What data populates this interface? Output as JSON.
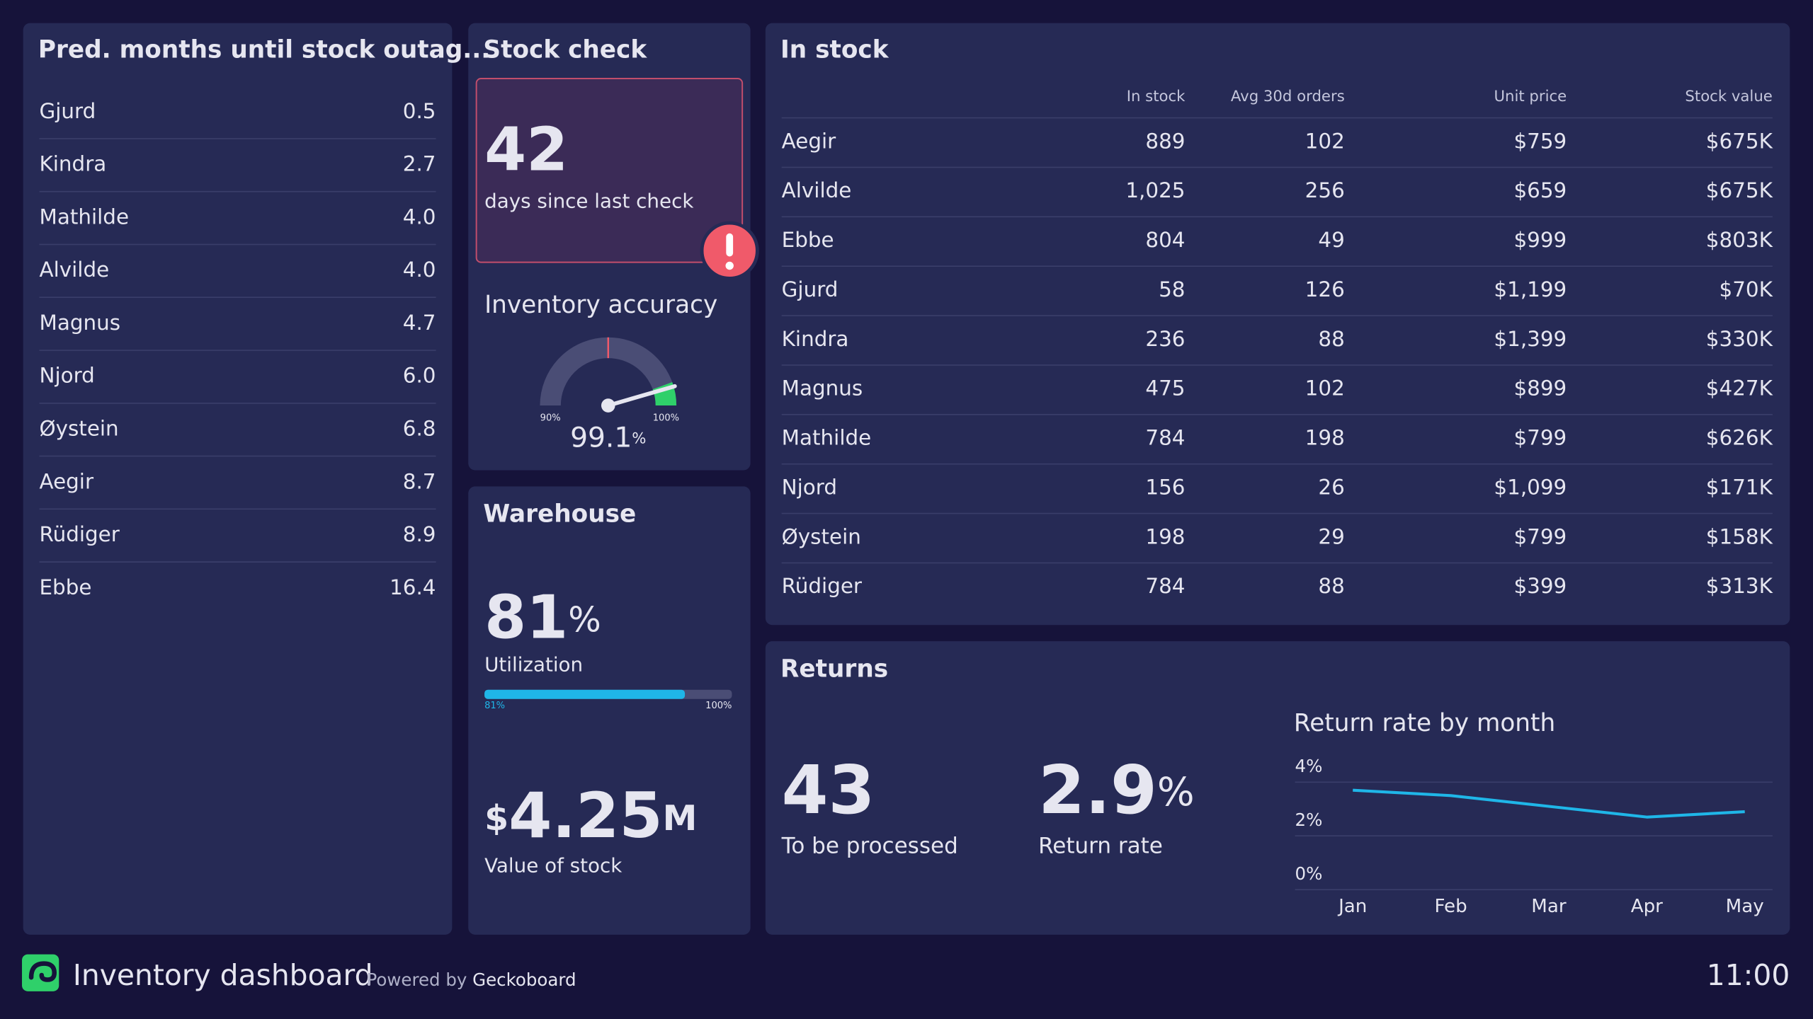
{
  "outage": {
    "title": "Pred. months until stock outag...",
    "rows": [
      [
        "Gjurd",
        "0.5"
      ],
      [
        "Kindra",
        "2.7"
      ],
      [
        "Mathilde",
        "4.0"
      ],
      [
        "Alvilde",
        "4.0"
      ],
      [
        "Magnus",
        "4.7"
      ],
      [
        "Njord",
        "6.0"
      ],
      [
        "Øystein",
        "6.8"
      ],
      [
        "Aegir",
        "8.7"
      ],
      [
        "Rüdiger",
        "8.9"
      ],
      [
        "Ebbe",
        "16.4"
      ]
    ]
  },
  "stock_check": {
    "title": "Stock check",
    "days": "42",
    "caption": "days since last check"
  },
  "accuracy": {
    "title": "Inventory accuracy",
    "value": 99.1,
    "unit": "%",
    "min": {
      "value": 90,
      "label": "90%"
    },
    "max": {
      "value": 100,
      "label": "100%"
    }
  },
  "warehouse": {
    "title": "Warehouse",
    "utilization": {
      "value": 81,
      "unit": "%",
      "label": "Utilization",
      "value_label": "81%",
      "max": {
        "value": 100,
        "label": "100%"
      }
    },
    "stock_value": {
      "prefix": "$",
      "value": "4.25",
      "suffix": "M",
      "label": "Value of stock"
    }
  },
  "in_stock": {
    "title": "In stock",
    "columns": [
      "In stock",
      "Avg 30d orders",
      "Unit price",
      "Stock value"
    ],
    "rows": [
      [
        "Aegir",
        "889",
        "102",
        "$759",
        "$675K"
      ],
      [
        "Alvilde",
        "1,025",
        "256",
        "$659",
        "$675K"
      ],
      [
        "Ebbe",
        "804",
        "49",
        "$999",
        "$803K"
      ],
      [
        "Gjurd",
        "58",
        "126",
        "$1,199",
        "$70K"
      ],
      [
        "Kindra",
        "236",
        "88",
        "$1,399",
        "$330K"
      ],
      [
        "Magnus",
        "475",
        "102",
        "$899",
        "$427K"
      ],
      [
        "Mathilde",
        "784",
        "198",
        "$799",
        "$626K"
      ],
      [
        "Njord",
        "156",
        "26",
        "$1,099",
        "$171K"
      ],
      [
        "Øystein",
        "198",
        "29",
        "$799",
        "$158K"
      ],
      [
        "Rüdiger",
        "784",
        "88",
        "$399",
        "$313K"
      ]
    ]
  },
  "returns": {
    "title": "Returns",
    "to_process": {
      "value": "43",
      "label": "To be processed"
    },
    "rate": {
      "value": "2.9",
      "unit": "%",
      "label": "Return rate"
    }
  },
  "chart_data": {
    "type": "line",
    "title": "Return rate by month",
    "categories": [
      "Jan",
      "Feb",
      "Mar",
      "Apr",
      "May"
    ],
    "values": [
      3.7,
      3.5,
      3.1,
      2.7,
      2.9
    ],
    "color": "#1fb6e8",
    "ylim": [
      0,
      4
    ],
    "yticks": [
      {
        "value": 0,
        "label": "0%"
      },
      {
        "value": 2,
        "label": "2%"
      },
      {
        "value": 4,
        "label": "4%"
      }
    ],
    "grid": true
  },
  "footer": {
    "title": "Inventory dashboard",
    "powered": "Powered by",
    "brand": "Geckoboard",
    "time": "11:00"
  }
}
